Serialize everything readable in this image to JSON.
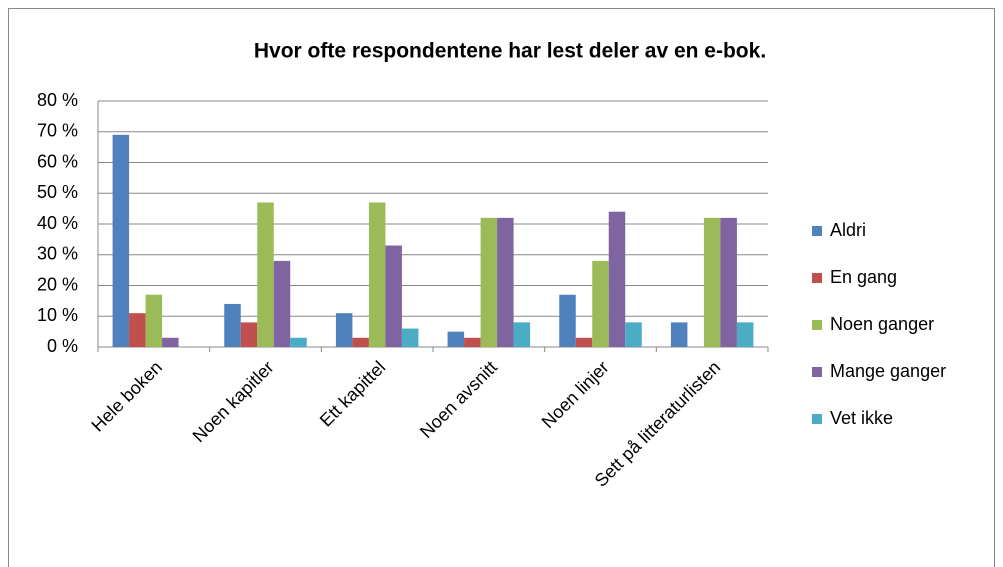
{
  "chart_data": {
    "type": "bar",
    "title": "Hvor ofte respondentene har lest deler av en e-bok.",
    "categories": [
      "Hele boken",
      "Noen kapitler",
      "Ett kapittel",
      "Noen avsnitt",
      "Noen linjer",
      "Sett på litteraturlisten"
    ],
    "series": [
      {
        "name": "Aldri",
        "color": "#4f81bd",
        "values": [
          69,
          14,
          11,
          5,
          17,
          8
        ]
      },
      {
        "name": "En gang",
        "color": "#c0504d",
        "values": [
          11,
          8,
          3,
          3,
          3,
          0
        ]
      },
      {
        "name": "Noen ganger",
        "color": "#9bbb59",
        "values": [
          17,
          47,
          47,
          42,
          28,
          42
        ]
      },
      {
        "name": "Mange ganger",
        "color": "#8064a2",
        "values": [
          3,
          28,
          33,
          42,
          44,
          42
        ]
      },
      {
        "name": "Vet ikke",
        "color": "#4bacc6",
        "values": [
          0,
          3,
          6,
          8,
          8,
          8
        ]
      }
    ],
    "ylim": [
      0,
      80
    ],
    "yticks": [
      {
        "value": 0,
        "label": "0 %"
      },
      {
        "value": 10,
        "label": "10 %"
      },
      {
        "value": 20,
        "label": "20 %"
      },
      {
        "value": 30,
        "label": "30 %"
      },
      {
        "value": 40,
        "label": "40 %"
      },
      {
        "value": 50,
        "label": "50 %"
      },
      {
        "value": 60,
        "label": "60 %"
      },
      {
        "value": 70,
        "label": "70 %"
      },
      {
        "value": 80,
        "label": "80 %"
      }
    ],
    "grid": true,
    "legend": "right"
  }
}
